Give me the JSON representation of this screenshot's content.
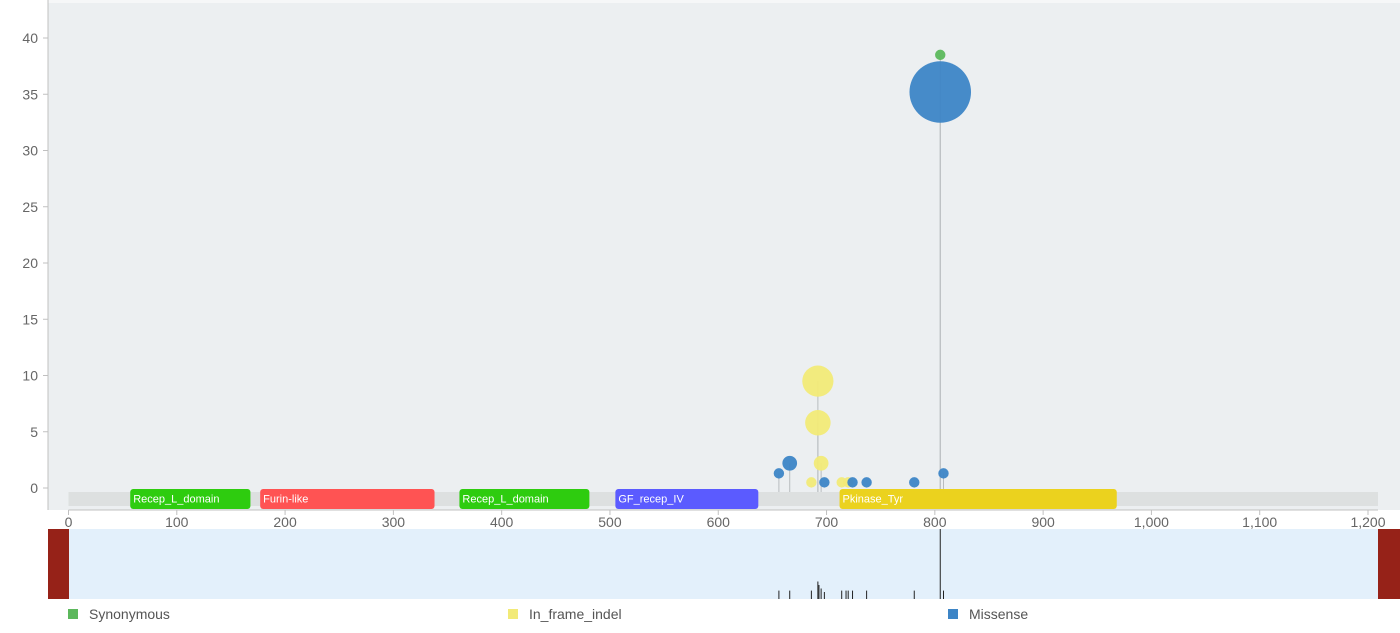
{
  "chart_data": {
    "type": "scatter",
    "subtype": "lollipop",
    "xlim": [
      0,
      1210
    ],
    "ylim": [
      0,
      40
    ],
    "x_ticks": [
      0,
      100,
      200,
      300,
      400,
      500,
      600,
      700,
      800,
      900,
      1000,
      1100,
      1200
    ],
    "x_tick_labels": [
      "0",
      "100",
      "200",
      "300",
      "400",
      "500",
      "600",
      "700",
      "800",
      "900",
      "1,000",
      "1,100",
      "1,200"
    ],
    "y_ticks": [
      0,
      5,
      10,
      15,
      20,
      25,
      30,
      35,
      40
    ],
    "y_tick_labels": [
      "0",
      "5",
      "10",
      "15",
      "20",
      "25",
      "30",
      "35",
      "40"
    ],
    "domains": [
      {
        "label": "Recep_L_domain",
        "start": 57,
        "end": 168,
        "color": "#2ecc0f"
      },
      {
        "label": "Furin-like",
        "start": 177,
        "end": 338,
        "color": "#ff5353"
      },
      {
        "label": "Recep_L_domain",
        "start": 361,
        "end": 481,
        "color": "#2ecc0f"
      },
      {
        "label": "GF_recep_IV",
        "start": 505,
        "end": 637,
        "color": "#5b5bff"
      },
      {
        "label": "Pkinase_Tyr",
        "start": 712,
        "end": 968,
        "color": "#ebd21e"
      }
    ],
    "series": [
      {
        "name": "Synonymous",
        "color": "#5cb85c",
        "points": [
          {
            "x": 805,
            "y": 38.5,
            "count": 1
          }
        ]
      },
      {
        "name": "In_frame_indel",
        "color": "#f2ea77",
        "points": [
          {
            "x": 692,
            "y": 9.5,
            "count": 9
          },
          {
            "x": 692,
            "y": 5.8,
            "count": 6
          },
          {
            "x": 695,
            "y": 2.2,
            "count": 2
          },
          {
            "x": 686,
            "y": 0.5,
            "count": 1
          },
          {
            "x": 714,
            "y": 0.5,
            "count": 1
          },
          {
            "x": 720,
            "y": 0.5,
            "count": 1
          }
        ]
      },
      {
        "name": "Missense",
        "color": "#3d85c6",
        "points": [
          {
            "x": 805,
            "y": 35.2,
            "count": 35
          },
          {
            "x": 666,
            "y": 2.2,
            "count": 2
          },
          {
            "x": 656,
            "y": 1.3,
            "count": 1
          },
          {
            "x": 808,
            "y": 1.3,
            "count": 1
          },
          {
            "x": 698,
            "y": 0.5,
            "count": 1
          },
          {
            "x": 724,
            "y": 0.5,
            "count": 1
          },
          {
            "x": 737,
            "y": 0.5,
            "count": 1
          },
          {
            "x": 781,
            "y": 0.5,
            "count": 1
          }
        ]
      }
    ],
    "overview_ticks": [
      656,
      666,
      686,
      692,
      693,
      695,
      698,
      714,
      718,
      720,
      724,
      737,
      781,
      805,
      808
    ],
    "overview_tick_heights": [
      0.12,
      0.12,
      0.12,
      0.25,
      0.2,
      0.15,
      0.1,
      0.12,
      0.12,
      0.12,
      0.12,
      0.12,
      0.12,
      1.0,
      0.12
    ]
  },
  "legend": [
    {
      "label": "Synonymous",
      "color": "#5cb85c"
    },
    {
      "label": "In_frame_indel",
      "color": "#f2ea77"
    },
    {
      "label": "Missense",
      "color": "#3d85c6"
    }
  ],
  "colors": {
    "plot_background": "#eceff1",
    "overview_background": "#e3f0fb",
    "overview_handle": "#962218",
    "backbone": "#dde0e0",
    "stem": "#b8bcbf",
    "axis": "#c0c0c0"
  }
}
